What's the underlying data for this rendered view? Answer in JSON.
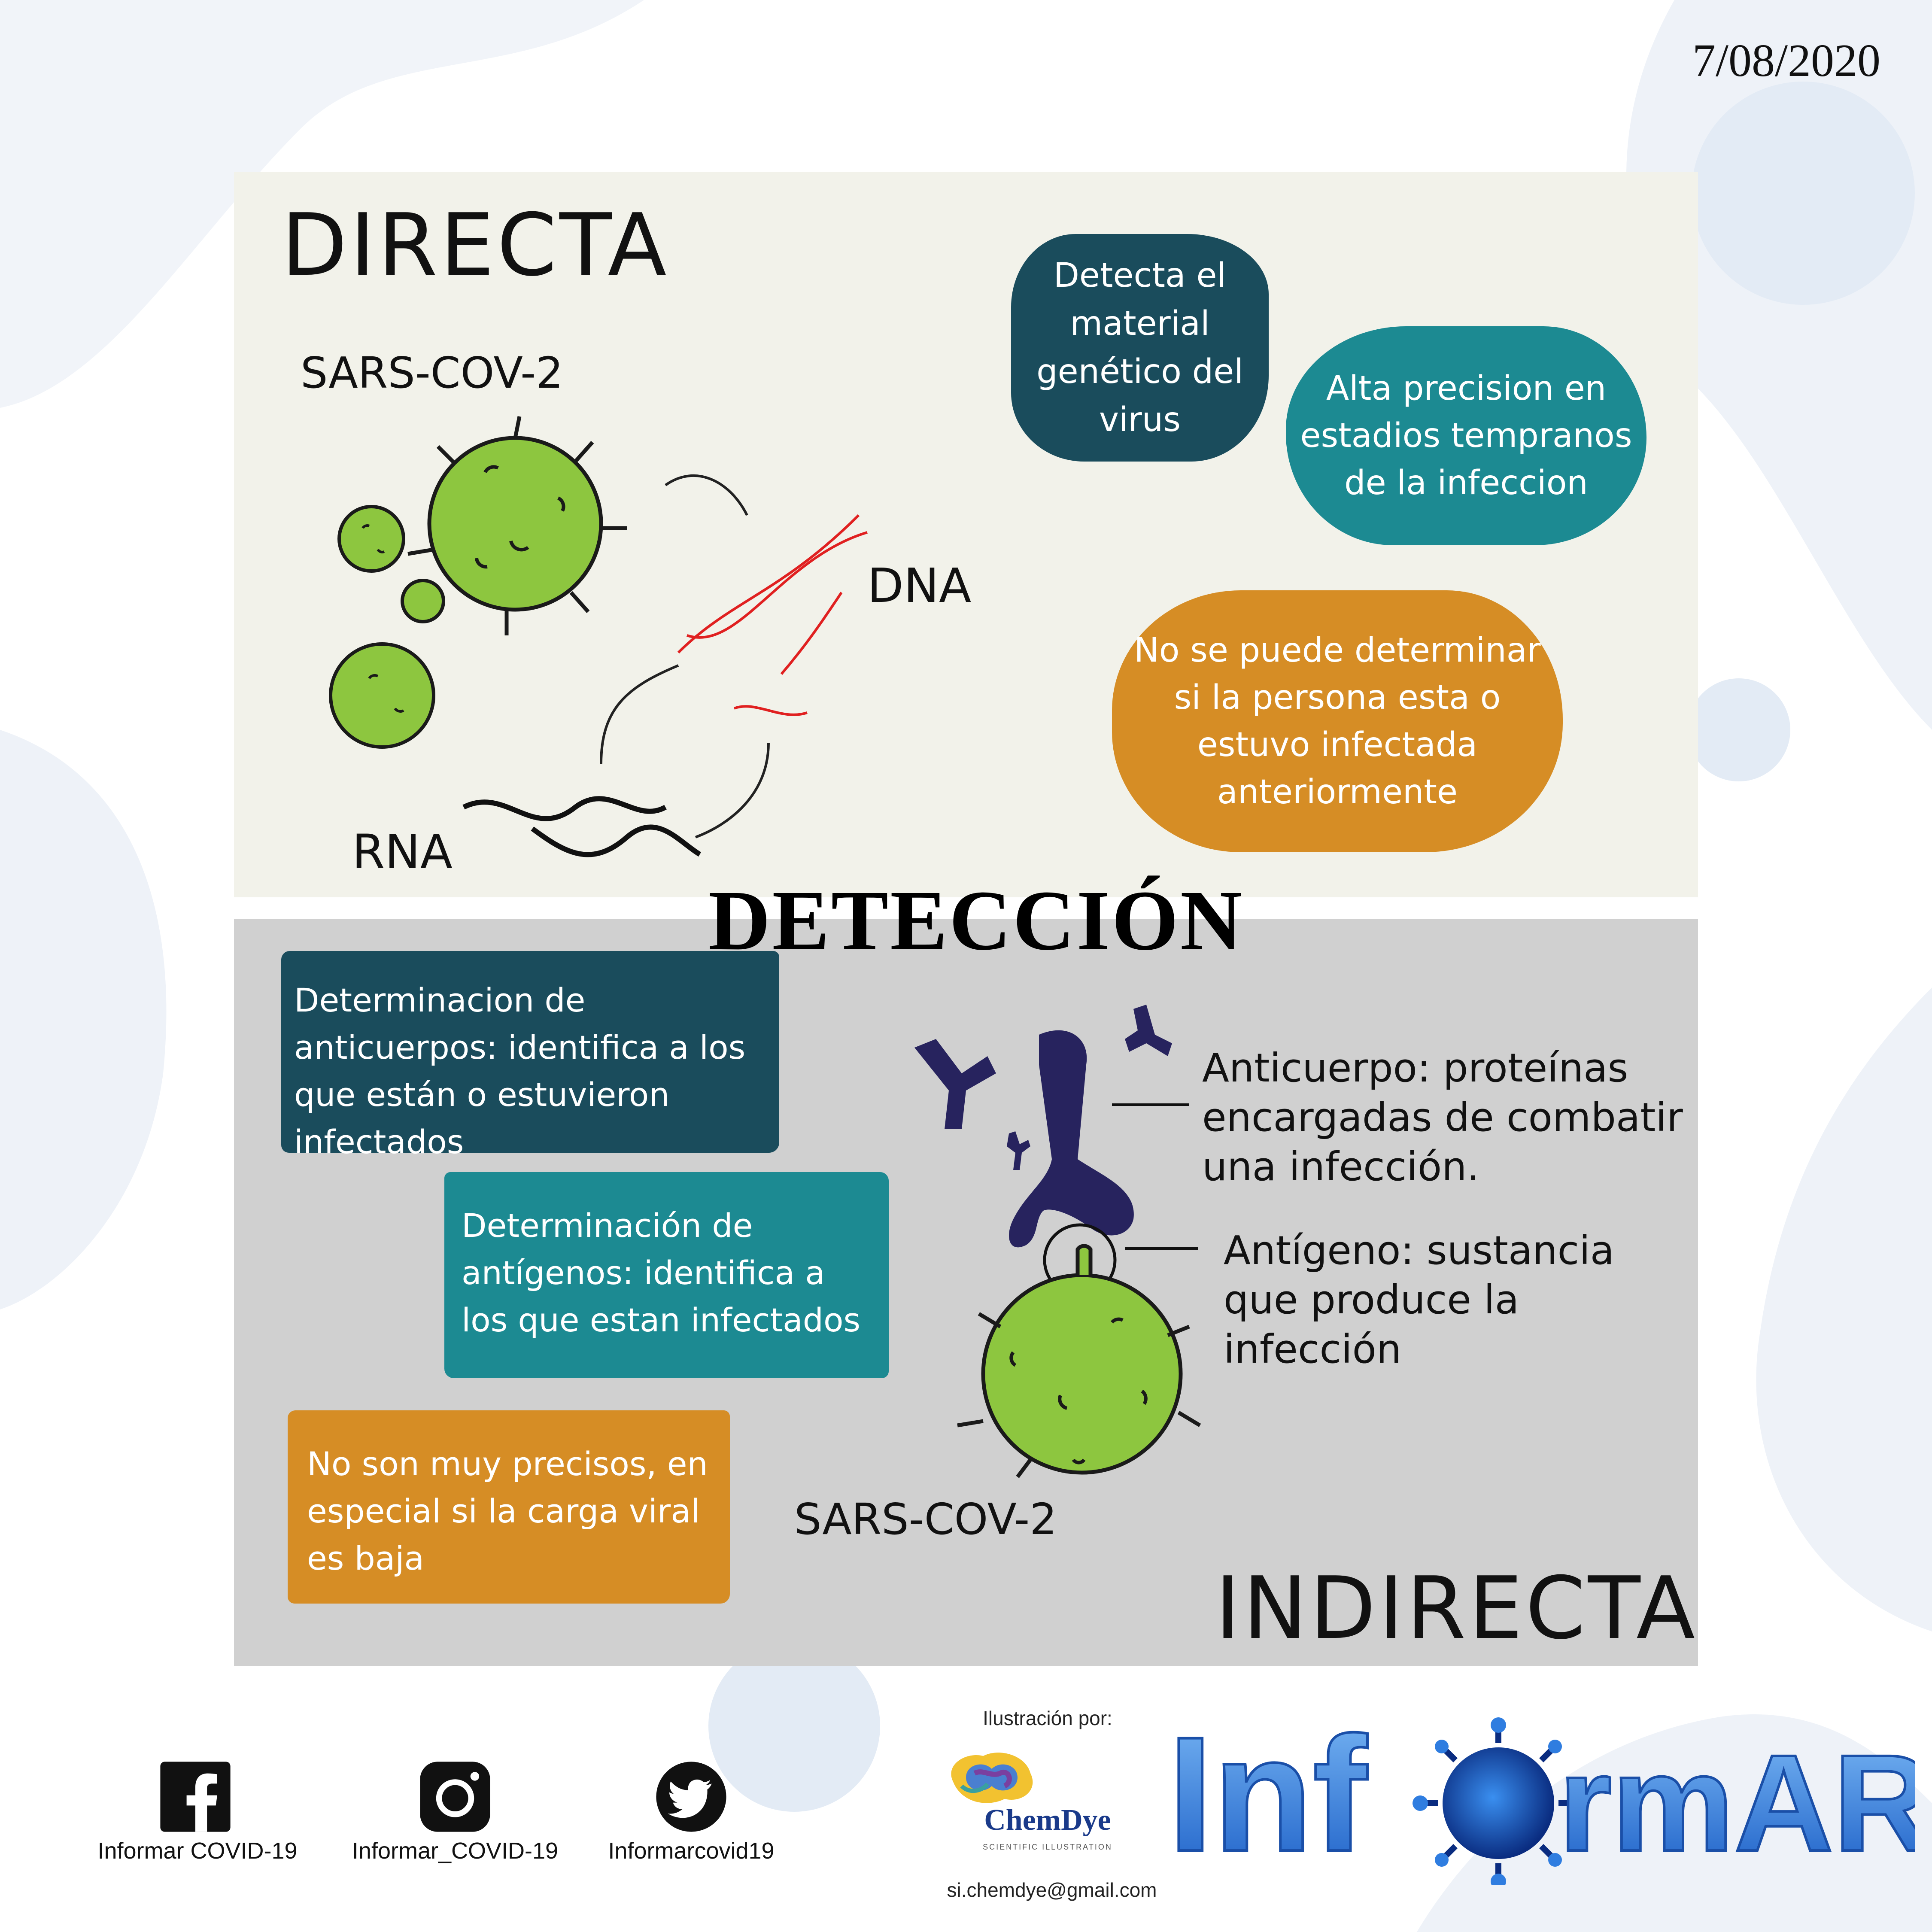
{
  "date": "7/08/2020",
  "directa": {
    "title": "DIRECTA",
    "sars_label": "SARS-COV-2",
    "dna_label": "DNA",
    "rna_label": "RNA",
    "blob_1": "Detecta el material genético del virus",
    "blob_2": "Alta precision en estadios tempranos de la infeccion",
    "blob_3": "No se puede determinar si la persona esta o estuvo infectada anteriormente"
  },
  "center_title": "DETECCIÓN",
  "indirecta": {
    "title": "INDIRECTA",
    "box_1": "Determinacion de anticuerpos: identifica a los que están o estuvieron infectados",
    "box_2": "Determinación de antígenos: identifica a los que estan infectados",
    "box_3": "No son muy precisos, en especial si la carga viral es baja",
    "annotation_antibody": "Anticuerpo: proteínas encargadas de combatir una infección.",
    "annotation_antigen": "Antígeno: sustancia que produce la infección",
    "sars_label": "SARS-COV-2"
  },
  "footer": {
    "illustration_label": "Ilustración por:",
    "chemdye_name": "ChemDye",
    "chemdye_subtitle": "SCIENTIFIC ILLUSTRATION",
    "email": "si.chemdye@gmail.com",
    "social": [
      {
        "icon": "facebook-icon",
        "label": "Informar COVID-19"
      },
      {
        "icon": "instagram-icon",
        "label": "Informar_COVID-19"
      },
      {
        "icon": "twitter-icon",
        "label": "Informarcovid19"
      }
    ],
    "brand_left": "Inf",
    "brand_right": "rmAR"
  },
  "colors": {
    "dark_teal": "#1a4c5c",
    "teal": "#1c8a92",
    "orange": "#d68d25",
    "virus_green": "#8dc63f",
    "antibody_navy": "#27235e",
    "dna_red": "#e02020",
    "brand_blue": "#2f7de0"
  }
}
